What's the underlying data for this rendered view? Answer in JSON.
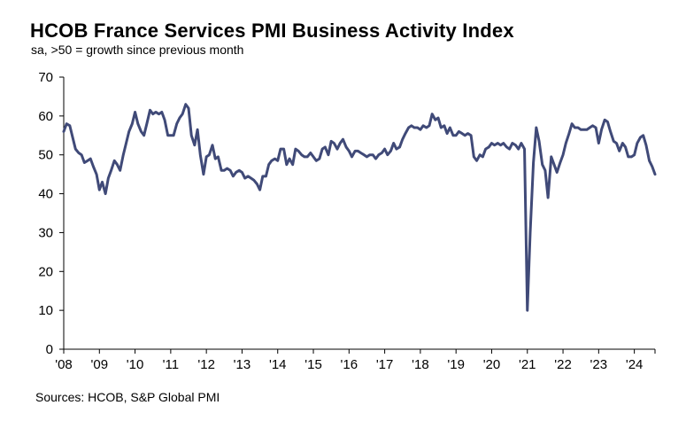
{
  "title": "HCOB France Services PMI Business Activity Index",
  "subtitle": "sa, >50 = growth since previous month",
  "source": "Sources: HCOB, S&P Global PMI",
  "colors": {
    "line": "#404a78",
    "axis": "#000000",
    "background": "#ffffff"
  },
  "chart_data": {
    "type": "line",
    "title": "HCOB France Services PMI Business Activity Index",
    "subtitle": "sa, >50 = growth since previous month",
    "ylim": [
      0,
      70
    ],
    "yticks": [
      0,
      10,
      20,
      30,
      40,
      50,
      60,
      70
    ],
    "xlim": [
      2008.0,
      2024.58
    ],
    "xticks": [
      "'08",
      "'09",
      "'10",
      "'11",
      "'12",
      "'13",
      "'14",
      "'15",
      "'16",
      "'17",
      "'18",
      "'19",
      "'20",
      "'21",
      "'22",
      "'23",
      "'24"
    ],
    "grid": false,
    "series": [
      {
        "values": [
          [
            2008.0,
            56.0
          ],
          [
            2008.08,
            58.0
          ],
          [
            2008.17,
            57.5
          ],
          [
            2008.25,
            54.5
          ],
          [
            2008.33,
            51.5
          ],
          [
            2008.42,
            50.5
          ],
          [
            2008.5,
            50.0
          ],
          [
            2008.58,
            48.0
          ],
          [
            2008.67,
            48.5
          ],
          [
            2008.75,
            49.0
          ],
          [
            2008.83,
            47.0
          ],
          [
            2008.92,
            45.0
          ],
          [
            2009.0,
            41.0
          ],
          [
            2009.08,
            43.0
          ],
          [
            2009.17,
            40.0
          ],
          [
            2009.25,
            44.0
          ],
          [
            2009.33,
            46.0
          ],
          [
            2009.42,
            48.5
          ],
          [
            2009.5,
            47.5
          ],
          [
            2009.58,
            46.0
          ],
          [
            2009.67,
            50.0
          ],
          [
            2009.75,
            53.0
          ],
          [
            2009.83,
            56.0
          ],
          [
            2009.92,
            58.0
          ],
          [
            2010.0,
            61.0
          ],
          [
            2010.08,
            58.0
          ],
          [
            2010.17,
            56.0
          ],
          [
            2010.25,
            55.0
          ],
          [
            2010.33,
            58.0
          ],
          [
            2010.42,
            61.5
          ],
          [
            2010.5,
            60.5
          ],
          [
            2010.58,
            61.0
          ],
          [
            2010.67,
            60.5
          ],
          [
            2010.75,
            61.0
          ],
          [
            2010.83,
            59.0
          ],
          [
            2010.92,
            55.0
          ],
          [
            2011.0,
            55.0
          ],
          [
            2011.08,
            55.0
          ],
          [
            2011.17,
            58.0
          ],
          [
            2011.25,
            59.5
          ],
          [
            2011.33,
            60.5
          ],
          [
            2011.42,
            63.0
          ],
          [
            2011.5,
            62.0
          ],
          [
            2011.58,
            55.0
          ],
          [
            2011.67,
            52.5
          ],
          [
            2011.75,
            56.5
          ],
          [
            2011.83,
            50.0
          ],
          [
            2011.92,
            45.0
          ],
          [
            2012.0,
            49.5
          ],
          [
            2012.08,
            50.0
          ],
          [
            2012.17,
            52.5
          ],
          [
            2012.25,
            49.0
          ],
          [
            2012.33,
            49.5
          ],
          [
            2012.42,
            46.0
          ],
          [
            2012.5,
            46.0
          ],
          [
            2012.58,
            46.5
          ],
          [
            2012.67,
            46.0
          ],
          [
            2012.75,
            44.5
          ],
          [
            2012.83,
            45.5
          ],
          [
            2012.92,
            46.0
          ],
          [
            2013.0,
            45.5
          ],
          [
            2013.08,
            44.0
          ],
          [
            2013.17,
            44.5
          ],
          [
            2013.25,
            44.0
          ],
          [
            2013.33,
            43.5
          ],
          [
            2013.42,
            42.5
          ],
          [
            2013.5,
            41.0
          ],
          [
            2013.58,
            44.5
          ],
          [
            2013.67,
            44.5
          ],
          [
            2013.75,
            47.5
          ],
          [
            2013.83,
            48.5
          ],
          [
            2013.92,
            49.0
          ],
          [
            2014.0,
            48.5
          ],
          [
            2014.08,
            51.5
          ],
          [
            2014.17,
            51.5
          ],
          [
            2014.25,
            47.5
          ],
          [
            2014.33,
            49.0
          ],
          [
            2014.42,
            47.5
          ],
          [
            2014.5,
            51.5
          ],
          [
            2014.58,
            51.0
          ],
          [
            2014.67,
            50.0
          ],
          [
            2014.75,
            49.5
          ],
          [
            2014.83,
            49.5
          ],
          [
            2014.92,
            50.5
          ],
          [
            2015.0,
            49.5
          ],
          [
            2015.08,
            48.5
          ],
          [
            2015.17,
            49.0
          ],
          [
            2015.25,
            51.5
          ],
          [
            2015.33,
            52.0
          ],
          [
            2015.42,
            50.0
          ],
          [
            2015.5,
            53.5
          ],
          [
            2015.58,
            53.0
          ],
          [
            2015.67,
            51.5
          ],
          [
            2015.75,
            53.0
          ],
          [
            2015.83,
            54.0
          ],
          [
            2015.92,
            52.0
          ],
          [
            2016.0,
            51.0
          ],
          [
            2016.08,
            49.5
          ],
          [
            2016.17,
            51.0
          ],
          [
            2016.25,
            51.0
          ],
          [
            2016.33,
            50.5
          ],
          [
            2016.42,
            50.0
          ],
          [
            2016.5,
            49.5
          ],
          [
            2016.58,
            50.0
          ],
          [
            2016.67,
            50.0
          ],
          [
            2016.75,
            49.0
          ],
          [
            2016.83,
            50.0
          ],
          [
            2016.92,
            50.5
          ],
          [
            2017.0,
            51.5
          ],
          [
            2017.08,
            50.0
          ],
          [
            2017.17,
            51.0
          ],
          [
            2017.25,
            53.0
          ],
          [
            2017.33,
            51.5
          ],
          [
            2017.42,
            52.0
          ],
          [
            2017.5,
            54.0
          ],
          [
            2017.58,
            55.5
          ],
          [
            2017.67,
            57.0
          ],
          [
            2017.75,
            57.5
          ],
          [
            2017.83,
            57.0
          ],
          [
            2017.92,
            57.0
          ],
          [
            2018.0,
            56.5
          ],
          [
            2018.08,
            57.5
          ],
          [
            2018.17,
            57.0
          ],
          [
            2018.25,
            57.5
          ],
          [
            2018.33,
            60.5
          ],
          [
            2018.42,
            59.0
          ],
          [
            2018.5,
            59.5
          ],
          [
            2018.58,
            57.0
          ],
          [
            2018.67,
            57.5
          ],
          [
            2018.75,
            55.5
          ],
          [
            2018.83,
            57.0
          ],
          [
            2018.92,
            55.0
          ],
          [
            2019.0,
            55.0
          ],
          [
            2019.08,
            56.0
          ],
          [
            2019.17,
            55.5
          ],
          [
            2019.25,
            55.0
          ],
          [
            2019.33,
            55.5
          ],
          [
            2019.42,
            55.0
          ],
          [
            2019.5,
            49.5
          ],
          [
            2019.58,
            48.5
          ],
          [
            2019.67,
            50.0
          ],
          [
            2019.75,
            49.5
          ],
          [
            2019.83,
            51.5
          ],
          [
            2019.92,
            52.0
          ],
          [
            2020.0,
            53.0
          ],
          [
            2020.08,
            52.5
          ],
          [
            2020.17,
            53.0
          ],
          [
            2020.25,
            52.5
          ],
          [
            2020.33,
            53.0
          ],
          [
            2020.42,
            52.0
          ],
          [
            2020.5,
            51.5
          ],
          [
            2020.58,
            53.0
          ],
          [
            2020.67,
            52.5
          ],
          [
            2020.75,
            51.5
          ],
          [
            2020.83,
            53.0
          ],
          [
            2020.92,
            51.5
          ],
          [
            2021.0,
            10.0
          ],
          [
            2021.08,
            30.0
          ],
          [
            2021.17,
            48.0
          ],
          [
            2021.25,
            57.0
          ],
          [
            2021.33,
            53.5
          ],
          [
            2021.42,
            47.5
          ],
          [
            2021.5,
            46.0
          ],
          [
            2021.58,
            39.0
          ],
          [
            2021.67,
            49.5
          ],
          [
            2021.75,
            47.5
          ],
          [
            2021.83,
            45.5
          ],
          [
            2021.92,
            48.0
          ],
          [
            2022.0,
            50.0
          ],
          [
            2022.08,
            53.0
          ],
          [
            2022.17,
            55.5
          ],
          [
            2022.25,
            58.0
          ],
          [
            2022.33,
            57.0
          ],
          [
            2022.42,
            57.0
          ],
          [
            2022.5,
            56.5
          ],
          [
            2022.58,
            56.5
          ],
          [
            2022.67,
            56.5
          ],
          [
            2022.75,
            57.0
          ],
          [
            2022.83,
            57.5
          ],
          [
            2022.92,
            57.0
          ],
          [
            2023.0,
            53.0
          ],
          [
            2023.08,
            56.5
          ],
          [
            2023.17,
            59.0
          ],
          [
            2023.25,
            58.5
          ],
          [
            2023.33,
            56.0
          ],
          [
            2023.42,
            53.5
          ],
          [
            2023.5,
            53.0
          ],
          [
            2023.58,
            51.0
          ],
          [
            2023.67,
            53.0
          ],
          [
            2023.75,
            52.0
          ],
          [
            2023.83,
            49.5
          ],
          [
            2023.92,
            49.5
          ],
          [
            2024.0,
            50.0
          ],
          [
            2024.08,
            53.0
          ],
          [
            2024.17,
            54.5
          ],
          [
            2024.25,
            55.0
          ],
          [
            2024.33,
            52.5
          ],
          [
            2024.42,
            48.5
          ],
          [
            2024.5,
            47.0
          ],
          [
            2024.58,
            45.0
          ]
        ]
      }
    ]
  }
}
